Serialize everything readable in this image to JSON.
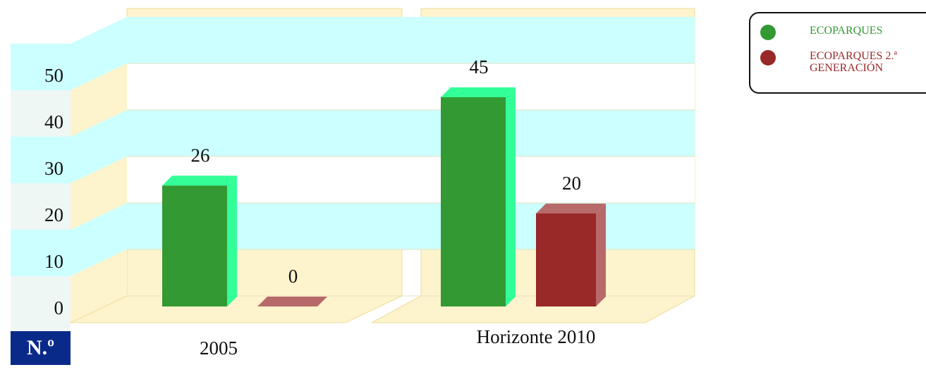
{
  "chart_data": {
    "type": "bar",
    "y_label": "N.º",
    "categories": [
      "2005",
      "Horizonte 2010"
    ],
    "series": [
      {
        "name": "ECOPARQUES",
        "color": "#339933",
        "top_color": "#33ff99",
        "values": [
          26,
          45
        ]
      },
      {
        "name": "ECOPARQUES 2.ª GENERACIÓN",
        "color": "#992828",
        "top_color": "#b86a6a",
        "values": [
          0,
          20
        ]
      }
    ],
    "ylim": [
      0,
      50
    ],
    "yticks": [
      0,
      10,
      20,
      30,
      40,
      50
    ],
    "grid": true,
    "legend": "top-right"
  }
}
